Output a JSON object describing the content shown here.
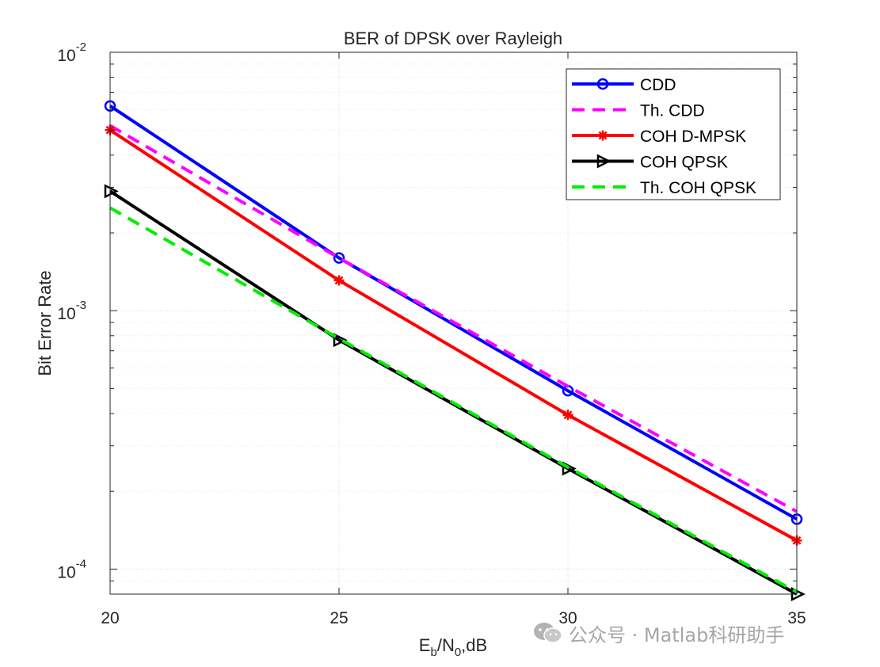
{
  "chart_data": {
    "type": "line",
    "title": "BER of DPSK over Rayleigh",
    "xlabel": "E_b/N_0,dB",
    "xlabel_parts": {
      "E": "E",
      "b": "b",
      "mid": "/N",
      "zero": "0",
      "tail": ",dB"
    },
    "ylabel": "Bit Error Rate",
    "yscale": "log",
    "xlim": [
      20,
      35
    ],
    "ylim": [
      8e-05,
      0.01
    ],
    "grid": true,
    "legend_location": "top-right",
    "x": [
      20,
      25,
      30,
      35
    ],
    "x_ticks": [
      "20",
      "25",
      "30",
      "35"
    ],
    "y_ticks": [
      {
        "value": 0.01,
        "base": "10",
        "exp": "-2"
      },
      {
        "value": 0.001,
        "base": "10",
        "exp": "-3"
      },
      {
        "value": 0.0001,
        "base": "10",
        "exp": "-4"
      }
    ],
    "series": [
      {
        "name": "CDD",
        "color": "#0000ff",
        "style": "solid",
        "marker": "circle",
        "values": [
          0.0062,
          0.0016,
          0.00049,
          0.000156
        ]
      },
      {
        "name": "Th. CDD",
        "color": "#ff00ff",
        "style": "dashed",
        "marker": "none",
        "values": [
          0.0052,
          0.0016,
          0.00051,
          0.000167
        ]
      },
      {
        "name": "COH D-MPSK",
        "color": "#ff0000",
        "style": "solid",
        "marker": "star",
        "values": [
          0.005,
          0.00131,
          0.000395,
          0.000129
        ]
      },
      {
        "name": "COH QPSK",
        "color": "#000000",
        "style": "solid",
        "marker": "triangle-right",
        "values": [
          0.0029,
          0.00077,
          0.000245,
          8e-05
        ]
      },
      {
        "name": "Th. COH QPSK",
        "color": "#00ee00",
        "style": "dashed",
        "marker": "none",
        "values": [
          0.0025,
          0.00078,
          0.000248,
          8.15e-05
        ]
      }
    ]
  },
  "watermark": {
    "icon": "wechat-icon",
    "text": "公众号 · Matlab科研助手"
  }
}
